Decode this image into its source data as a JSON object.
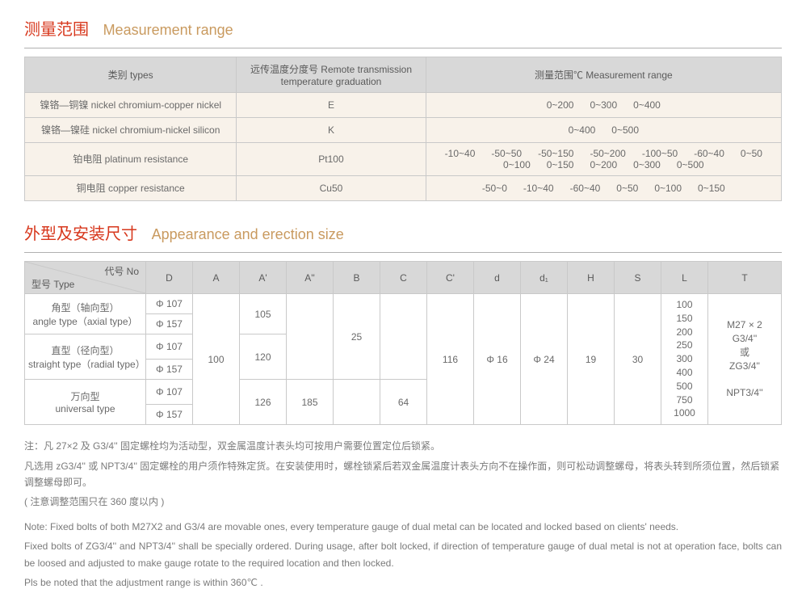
{
  "section1": {
    "title_cn": "测量范围",
    "title_en": "Measurement range",
    "headers": {
      "types": "类别 types",
      "graduation": "远传温度分度号 Remote transmission temperature graduation",
      "range": "测量范围℃ Measurement range"
    },
    "rows": [
      {
        "type": "镍铬—铜镍 nickel chromium-copper nickel",
        "grad": "E",
        "ranges": [
          "0~200",
          "0~300",
          "0~400"
        ]
      },
      {
        "type": "镍铬—镍硅 nickel chromium-nickel silicon",
        "grad": "K",
        "ranges": [
          "0~400",
          "0~500"
        ]
      },
      {
        "type": "铂电阻 platinum resistance",
        "grad": "Pt100",
        "ranges": [
          "-10~40",
          "-50~50",
          "-50~150",
          "-50~200",
          "-100~50",
          "-60~40",
          "0~50",
          "0~100",
          "0~150",
          "0~200",
          "0~300",
          "0~500"
        ]
      },
      {
        "type": "铜电阻 copper resistance",
        "grad": "Cu50",
        "ranges": [
          "-50~0",
          "-10~40",
          "-60~40",
          "0~50",
          "0~100",
          "0~150"
        ]
      }
    ]
  },
  "section2": {
    "title_cn": "外型及安装尺寸",
    "title_en": "Appearance and erection size",
    "diag": {
      "no": "代号 No",
      "type": "型号 Type"
    },
    "cols": [
      "D",
      "A",
      "A'",
      "A''",
      "B",
      "C",
      "C'",
      "d",
      "d₁",
      "H",
      "S",
      "L",
      "T"
    ],
    "types": {
      "angle": "角型（轴向型）\nangle type（axial type）",
      "straight": "直型（径向型）\nstraight type（radial type）",
      "universal": "万向型\nuniversal type"
    },
    "D": [
      "Φ 107",
      "Φ 157"
    ],
    "A": "100",
    "Aprime": {
      "angle": "105",
      "straight": "120",
      "universal": "126"
    },
    "Adprime_universal": "185",
    "B": "25",
    "C_universal": "64",
    "Cprime": "116",
    "d": "Φ 16",
    "d1": "Φ 24",
    "H": "19",
    "S": "30",
    "L": "100\n150\n200\n250\n300\n400\n500\n750\n1000",
    "T": "M27 × 2\nG3/4''\n或\nZG3/4''\n\nNPT3/4''"
  },
  "notes": {
    "cn1": "注：凡 27×2 及 G3/4'' 固定螺栓均为活动型，双金属温度计表头均可按用户需要位置定位后锁紧。",
    "cn2": "凡选用 zG3/4'' 或 NPT3/4'' 固定螺栓的用户须作特殊定货。在安装使用时，螺栓锁紧后若双金属温度计表头方向不在操作面，则可松动调整螺母，将表头转到所须位置，然后锁紧调整螺母即可。",
    "cn3": "( 注意调整范围只在 360 度以内 )",
    "en1": "Note:   Fixed bolts of both M27X2 and G3/4 are movable ones, every temperature gauge of dual metal can be located and locked based on clients' needs.",
    "en2": "Fixed bolts of ZG3/4'' and NPT3/4'' shall be specially ordered. During usage, after bolt locked, if direction of temperature gauge of dual metal is not at operation face, bolts can be loosed and adjusted to make gauge rotate to the required location and then locked.",
    "en3": "Pls be noted that the adjustment range is within 360℃ ."
  }
}
